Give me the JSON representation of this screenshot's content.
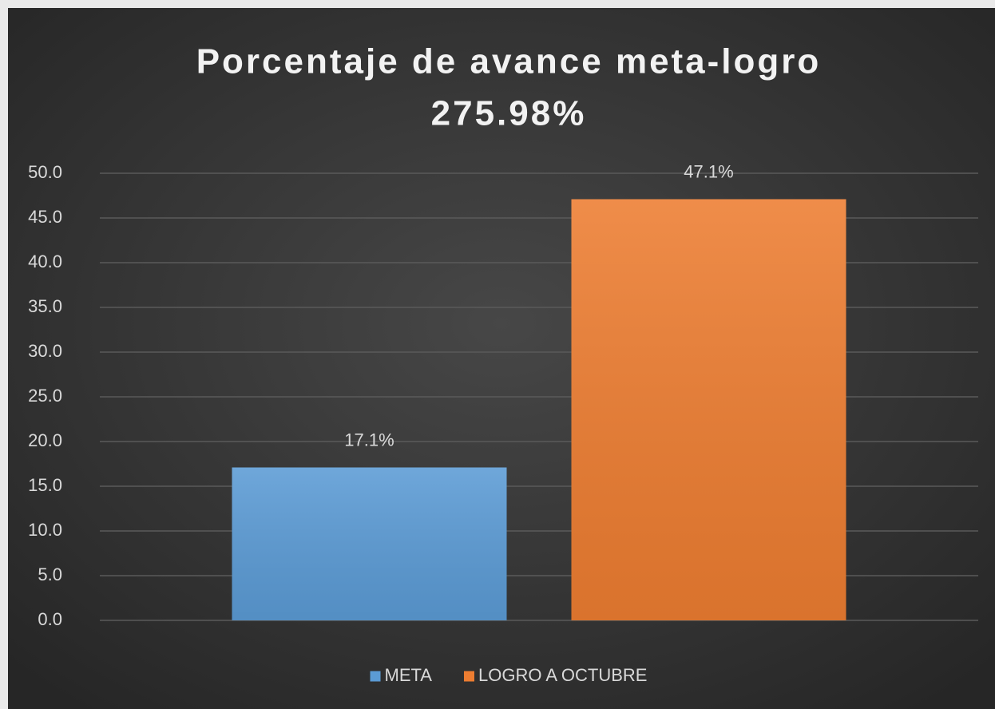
{
  "chart_data": {
    "type": "bar",
    "title": "Porcentaje de avance meta-logro",
    "subtitle": "275.98%",
    "categories": [
      null
    ],
    "series": [
      {
        "name": "META",
        "color": "#5b9bd5",
        "values": [
          17.1
        ],
        "value_labels": [
          "17.1%"
        ]
      },
      {
        "name": "LOGRO A OCTUBRE",
        "color": "#ed7d31",
        "values": [
          47.1
        ],
        "value_labels": [
          "47.1%"
        ]
      }
    ],
    "ylim": [
      0,
      50
    ],
    "yticks": [
      {
        "value": 0,
        "label": "0.0"
      },
      {
        "value": 5,
        "label": "5.0"
      },
      {
        "value": 10,
        "label": "10.0"
      },
      {
        "value": 15,
        "label": "15.0"
      },
      {
        "value": 20,
        "label": "20.0"
      },
      {
        "value": 25,
        "label": "25.0"
      },
      {
        "value": 30,
        "label": "30.0"
      },
      {
        "value": 35,
        "label": "35.0"
      },
      {
        "value": 40,
        "label": "40.0"
      },
      {
        "value": 45,
        "label": "45.0"
      },
      {
        "value": 50,
        "label": "50.0"
      }
    ],
    "grid": true,
    "legend": "bottom"
  }
}
